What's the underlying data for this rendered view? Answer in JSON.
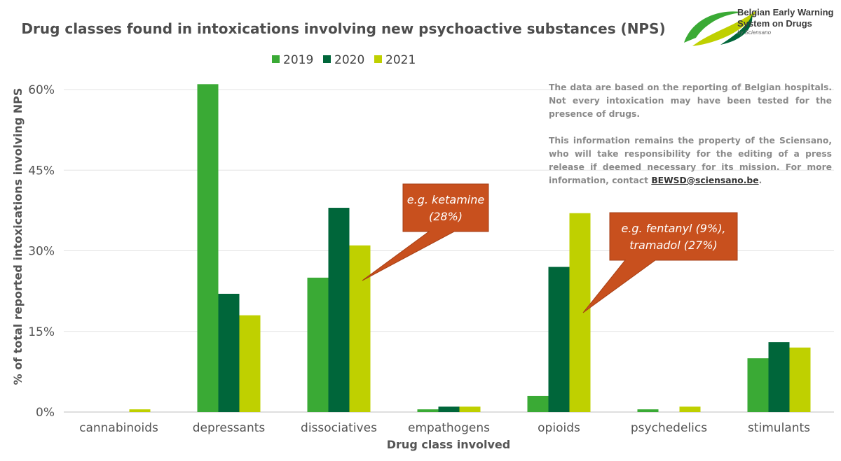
{
  "chart_data": {
    "type": "bar",
    "title": "Drug classes found in intoxications involving new psychoactive substances (NPS)",
    "xlabel": "Drug class involved",
    "ylabel": "% of total reported intoxications involving NPS",
    "ylim": [
      0,
      60
    ],
    "yticks": [
      0,
      15,
      30,
      45,
      60
    ],
    "ytick_labels": [
      "0%",
      "15%",
      "30%",
      "45%",
      "60%"
    ],
    "grid": true,
    "legend_position": "top-center",
    "categories": [
      "cannabinoids",
      "depressants",
      "dissociatives",
      "empathogens",
      "opioids",
      "psychedelics",
      "stimulants"
    ],
    "series": [
      {
        "name": "2019",
        "color": "#3aaa35",
        "values": [
          0,
          61,
          25,
          0.5,
          3,
          0.5,
          10
        ]
      },
      {
        "name": "2020",
        "color": "#00663a",
        "values": [
          0,
          22,
          38,
          1,
          27,
          0,
          13
        ]
      },
      {
        "name": "2021",
        "color": "#bfd000",
        "values": [
          0.5,
          18,
          31,
          1,
          37,
          1,
          12
        ]
      }
    ],
    "annotations": [
      {
        "category": "dissociatives",
        "series": "2021",
        "lines": [
          "e.g. ketamine",
          "(28%)"
        ],
        "color": "#c8501e"
      },
      {
        "category": "opioids",
        "series": "2021",
        "lines": [
          "e.g. fentanyl (9%),",
          "tramadol (27%)"
        ],
        "color": "#c8501e"
      }
    ]
  },
  "note": {
    "paragraph1": "The data are based on the reporting of Belgian hospitals. Not every intoxication may have been tested for the presence of drugs.",
    "paragraph2": "This information remains the property of the Sciensano, who will take responsibility for the editing of a press release if deemed necessary for its mission. For more information, contact",
    "email": "BEWSD@sciensano.be",
    "end": "."
  },
  "logo": {
    "line1": "Belgian Early Warning",
    "line2": "System on Drugs",
    "by": "by Sciensano"
  }
}
